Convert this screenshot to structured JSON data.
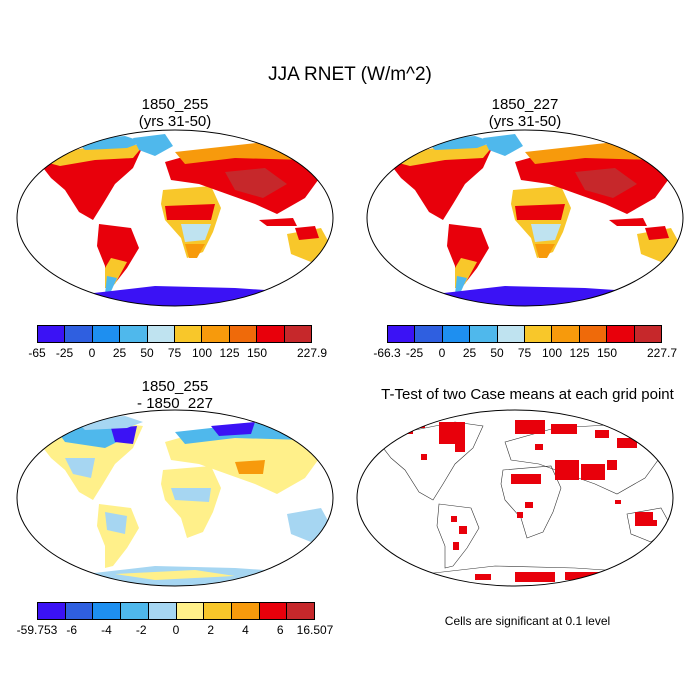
{
  "figure": {
    "title": "JJA RNET (W/m^2)"
  },
  "panels": {
    "p1": {
      "title_line1": "1850_255",
      "title_line2": "(yrs 31-50)"
    },
    "p2": {
      "title_line1": "1850_227",
      "title_line2": "(yrs 31-50)"
    },
    "p3": {
      "title_line1": "1850_255",
      "title_line2": "- 1850_227"
    },
    "p4": {
      "title": "T-Test of two Case means at each grid point",
      "note": "Cells are significant at 0.1 level",
      "sig_color": "#e8000b"
    }
  },
  "colorbars": {
    "cb1": {
      "colors": [
        "#3b12f5",
        "#2f5fe0",
        "#1e8ff0",
        "#4fb8ec",
        "#bfe3f0",
        "#f8c72a",
        "#f79a0c",
        "#ef6a0a",
        "#e8000b",
        "#c6282b"
      ],
      "labels": [
        "-65",
        "-25",
        "0",
        "25",
        "50",
        "75",
        "100",
        "125",
        "150",
        "227.9"
      ]
    },
    "cb2": {
      "colors": [
        "#3b12f5",
        "#2f5fe0",
        "#1e8ff0",
        "#4fb8ec",
        "#bfe3f0",
        "#f8c72a",
        "#f79a0c",
        "#ef6a0a",
        "#e8000b",
        "#c6282b"
      ],
      "labels": [
        "-66.3",
        "-25",
        "0",
        "25",
        "50",
        "75",
        "100",
        "125",
        "150",
        "227.7"
      ]
    },
    "cb3": {
      "colors": [
        "#3b12f5",
        "#2f5fe0",
        "#1e8ff0",
        "#4fb8ec",
        "#a6d6f2",
        "#fff08a",
        "#f8c72a",
        "#f79a0c",
        "#e8000b",
        "#c6282b"
      ],
      "labels": [
        "-59.753",
        "-6",
        "-4",
        "-2",
        "0",
        "2",
        "4",
        "6",
        "16.507"
      ]
    }
  }
}
